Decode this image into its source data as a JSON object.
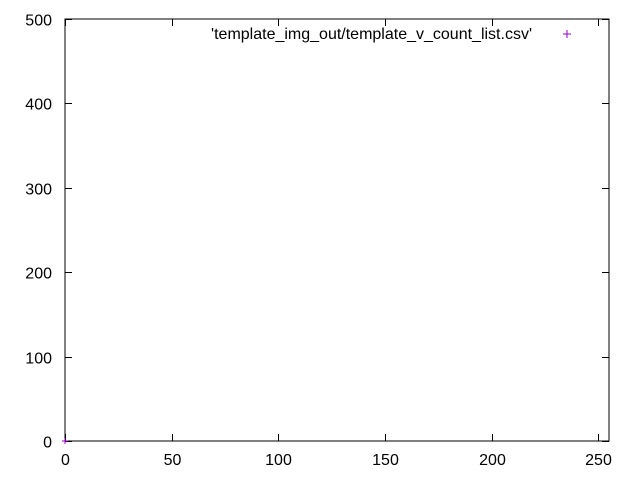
{
  "chart_data": {
    "type": "scatter",
    "title": "",
    "xlabel": "",
    "ylabel": "",
    "xlim": [
      0,
      255
    ],
    "ylim": [
      0,
      500
    ],
    "x_ticks": [
      "0",
      "50",
      "100",
      "150",
      "200",
      "250"
    ],
    "y_ticks": [
      "0",
      "100",
      "200",
      "300",
      "400",
      "500"
    ],
    "grid": false,
    "legend_position": "top-right",
    "series": [
      {
        "name": "'template_img_out/template_v_count_list.csv'",
        "marker": "+",
        "color": "#9400d3",
        "points": [
          {
            "x": 0,
            "y": 0
          }
        ]
      }
    ]
  }
}
